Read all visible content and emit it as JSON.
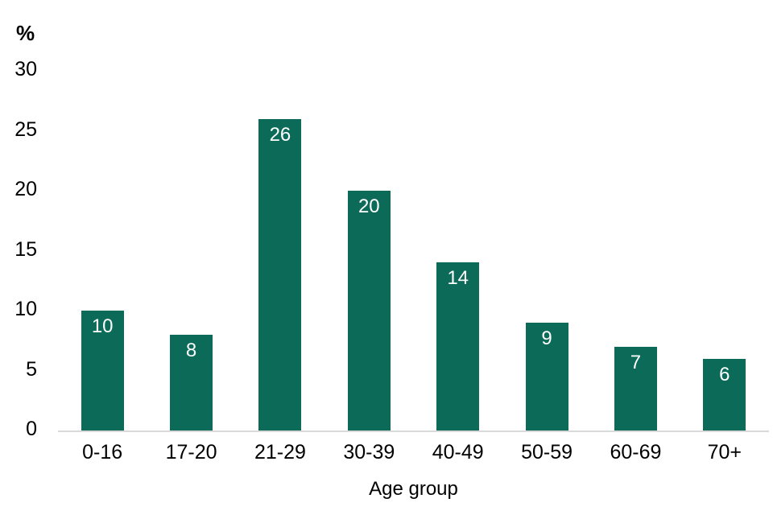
{
  "chart_data": {
    "type": "bar",
    "title": "",
    "xlabel": "Age group",
    "ylabel": "%",
    "categories": [
      "0-16",
      "17-20",
      "21-29",
      "30-39",
      "40-49",
      "50-59",
      "60-69",
      "70+"
    ],
    "values": [
      10,
      8,
      26,
      20,
      14,
      9,
      7,
      6
    ],
    "yticks": [
      0,
      5,
      10,
      15,
      20,
      25,
      30
    ],
    "ylim": [
      0,
      30
    ],
    "grid": "off",
    "legend": "none",
    "colors": {
      "bar": "#0B6B58",
      "bar_value_label": "#FFFFFF",
      "axis_line": "#D9D9D9",
      "text": "#000000",
      "background": "#FFFFFF"
    }
  }
}
